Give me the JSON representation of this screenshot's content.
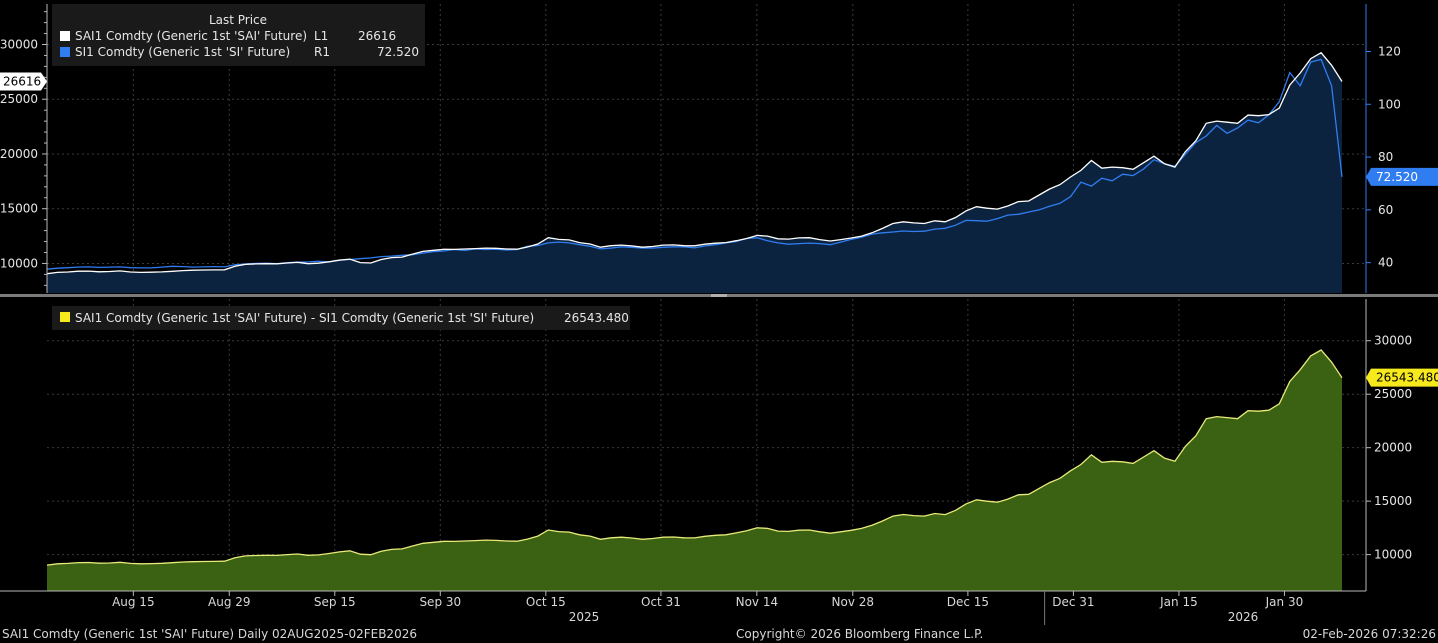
{
  "colors": {
    "background": "#000000",
    "grid": "#3a3a3a",
    "axis_left": "#b9b9b9",
    "sai_line": "#ffffff",
    "si_line": "#2f7df0",
    "top_fill": "#0c2340",
    "spread_line": "#e8ea7a",
    "spread_fill": "#3b6212",
    "yellow_marker": "#f7ea1c",
    "blue_marker": "#2f7df0",
    "legend_bg": "#1a1a1a"
  },
  "chart_data": [
    {
      "type": "line",
      "panel": "top",
      "title": "Last Price",
      "legend_placement": "top-left",
      "x_tick_labels": [
        "Aug 15",
        "Aug 29",
        "Sep 15",
        "Sep 30",
        "Oct 15",
        "Oct 31",
        "Nov 14",
        "Nov 28",
        "Dec 15",
        "Dec 31",
        "Jan 15",
        "Jan 30"
      ],
      "y_left": {
        "ticks": [
          10000,
          15000,
          20000,
          25000,
          30000
        ],
        "range": [
          7300,
          33700
        ]
      },
      "y_right": {
        "ticks": [
          40,
          60,
          80,
          100,
          120
        ],
        "range": [
          28.5,
          138
        ]
      },
      "series": [
        {
          "name": "SAI1 Comdty (Generic 1st 'SAI' Future)",
          "axis": "L1",
          "last_value": "26616",
          "values": [
            9060,
            9180,
            9220,
            9290,
            9300,
            9240,
            9260,
            9320,
            9220,
            9180,
            9200,
            9230,
            9280,
            9350,
            9380,
            9400,
            9410,
            9420,
            9750,
            9920,
            9960,
            9980,
            9970,
            10040,
            10100,
            9980,
            10020,
            10150,
            10300,
            10400,
            10080,
            10040,
            10360,
            10530,
            10580,
            10850,
            11100,
            11200,
            11290,
            11280,
            11320,
            11360,
            11400,
            11380,
            11320,
            11300,
            11500,
            11780,
            12350,
            12200,
            12150,
            11900,
            11780,
            11480,
            11620,
            11680,
            11600,
            11480,
            11550,
            11680,
            11690,
            11620,
            11610,
            11760,
            11850,
            11900,
            12080,
            12280,
            12560,
            12500,
            12250,
            12220,
            12330,
            12350,
            12180,
            12050,
            12180,
            12320,
            12500,
            12800,
            13200,
            13650,
            13800,
            13700,
            13650,
            13900,
            13800,
            14200,
            14800,
            15180,
            15050,
            14960,
            15250,
            15650,
            15700,
            16250,
            16800,
            17200,
            17900,
            18500,
            19400,
            18700,
            18800,
            18750,
            18600,
            19200,
            19800,
            19100,
            18800,
            20200,
            21200,
            22800,
            23000,
            22900,
            22800,
            23550,
            23500,
            23600,
            24200,
            26300,
            27400,
            28700,
            29250,
            28100,
            26616
          ]
        },
        {
          "name": "SI1 Comdty (Generic 1st 'SI' Future)",
          "axis": "R1",
          "last_value": "72.520",
          "values": [
            37.5,
            37.9,
            38.1,
            38.3,
            38.4,
            38.2,
            38.3,
            38.4,
            38.1,
            38.0,
            38.0,
            38.3,
            38.6,
            38.5,
            38.3,
            38.4,
            38.5,
            38.4,
            39.2,
            39.5,
            39.7,
            39.8,
            39.6,
            40.0,
            40.2,
            40.3,
            40.5,
            40.3,
            41.0,
            41.2,
            41.5,
            41.8,
            42.3,
            42.5,
            42.8,
            43.0,
            43.6,
            44.2,
            44.4,
            45.0,
            44.6,
            45.2,
            45.0,
            45.1,
            44.8,
            45.0,
            46.2,
            46.5,
            47.5,
            47.8,
            47.5,
            46.8,
            46.2,
            45.2,
            45.5,
            46.0,
            45.8,
            45.5,
            45.5,
            45.8,
            46.0,
            46.0,
            45.6,
            46.3,
            46.8,
            47.5,
            48.0,
            49.2,
            49.4,
            48.3,
            47.5,
            47.0,
            47.2,
            47.4,
            47.2,
            46.8,
            47.8,
            48.8,
            49.6,
            50.8,
            51.3,
            51.6,
            52.0,
            51.8,
            51.9,
            52.7,
            53.0,
            54.2,
            56.0,
            55.9,
            55.7,
            56.7,
            58.0,
            58.3,
            59.2,
            60.0,
            61.4,
            62.5,
            65.0,
            70.5,
            69.0,
            72.0,
            71.0,
            73.5,
            73.0,
            75.5,
            79.0,
            77.5,
            76.5,
            81.0,
            85.5,
            88.0,
            92.0,
            89.0,
            91.0,
            94.0,
            93.0,
            96.0,
            101.0,
            112.0,
            107.0,
            116.0,
            117.0,
            107.0,
            72.52
          ]
        }
      ]
    },
    {
      "type": "area",
      "panel": "bottom",
      "legend_placement": "top-left",
      "y_right": {
        "ticks": [
          10000,
          15000,
          20000,
          25000,
          30000
        ],
        "range": [
          6600,
          33900
        ]
      },
      "series": [
        {
          "name": "SAI1 Comdty (Generic 1st 'SAI' Future) - SI1 Comdty (Generic 1st 'SI' Future)",
          "last_value": "26543.480",
          "values": [
            9022.5,
            9142.1,
            9181.9,
            9251.7,
            9261.6,
            9201.8,
            9221.7,
            9281.6,
            9181.9,
            9142.0,
            9162.0,
            9191.7,
            9241.4,
            9311.5,
            9341.7,
            9361.6,
            9371.5,
            9381.6,
            9710.8,
            9880.5,
            9920.3,
            9940.2,
            9930.4,
            10000.0,
            10059.8,
            9939.7,
            9979.5,
            10109.7,
            10259.0,
            10358.8,
            10038.5,
            9998.2,
            10317.7,
            10487.5,
            10537.2,
            10807.0,
            11056.4,
            11155.8,
            11245.6,
            11235.0,
            11275.4,
            11314.8,
            11355.0,
            11334.9,
            11275.2,
            11255.0,
            11453.8,
            11733.5,
            12302.5,
            12152.2,
            12102.5,
            11853.2,
            11733.8,
            11434.8,
            11574.5,
            11634.0,
            11554.2,
            11434.5,
            11504.5,
            11634.2,
            11644.0,
            11574.0,
            11564.4,
            11713.7,
            11803.2,
            11852.5,
            12032.0,
            12230.8,
            12510.6,
            12451.7,
            12202.5,
            12173.0,
            12282.8,
            12302.6,
            12132.8,
            12003.2,
            12132.2,
            12271.2,
            12450.4,
            12749.2,
            13148.7,
            13598.4,
            13748.0,
            13648.2,
            13598.1,
            13847.3,
            13747.0,
            14145.8,
            14744.0,
            15124.1,
            14994.3,
            14903.3,
            15192.0,
            15591.7,
            15640.8,
            16190.0,
            16738.6,
            17137.5,
            17835.0,
            18429.5,
            19331.0,
            18628.0,
            18729.0,
            18676.5,
            18527.0,
            19124.5,
            19721.0,
            19022.5,
            18723.5,
            20119.0,
            21114.5,
            22712.0,
            22908.0,
            22811.0,
            22709.0,
            23456.0,
            23407.0,
            23504.0,
            24099.0,
            26188.0,
            27293.0,
            28584.0,
            29133.0,
            27993.0,
            26543.48
          ]
        }
      ]
    }
  ],
  "footer": {
    "left": "SAI1 Comdty (Generic 1st 'SAI' Future) Daily 02AUG2025-02FEB2026",
    "center": "Copyright© 2026 Bloomberg Finance L.P.",
    "right": "02-Feb-2026 07:32:26"
  },
  "year_labels": [
    "2025",
    "2026"
  ]
}
